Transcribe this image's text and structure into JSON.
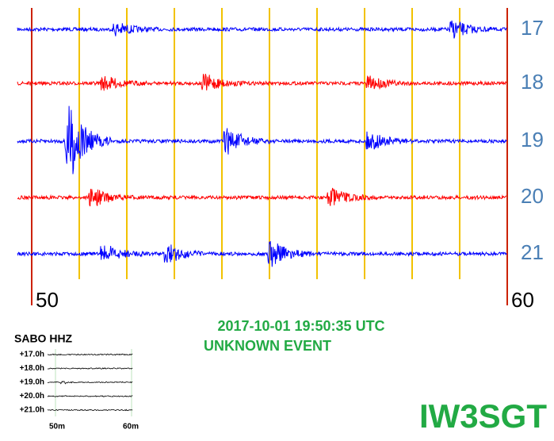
{
  "traces": [
    {
      "label": "17",
      "color": "#0000ff"
    },
    {
      "label": "18",
      "color": "#ff0000"
    },
    {
      "label": "19",
      "color": "#0000ff"
    },
    {
      "label": "20",
      "color": "#ff0000"
    },
    {
      "label": "21",
      "color": "#0000ff"
    }
  ],
  "axis": {
    "start": "50",
    "end": "60"
  },
  "event": {
    "datetime": "2017-10-01 19:50:35 UTC",
    "type": "UNKNOWN EVENT"
  },
  "thumbnail": {
    "station": "SABO HHZ",
    "rows": [
      "+17.0h",
      "+18.0h",
      "+19.0h",
      "+20.0h",
      "+21.0h"
    ],
    "start": "50m",
    "end": "60m"
  },
  "brand": "IW3SGT"
}
